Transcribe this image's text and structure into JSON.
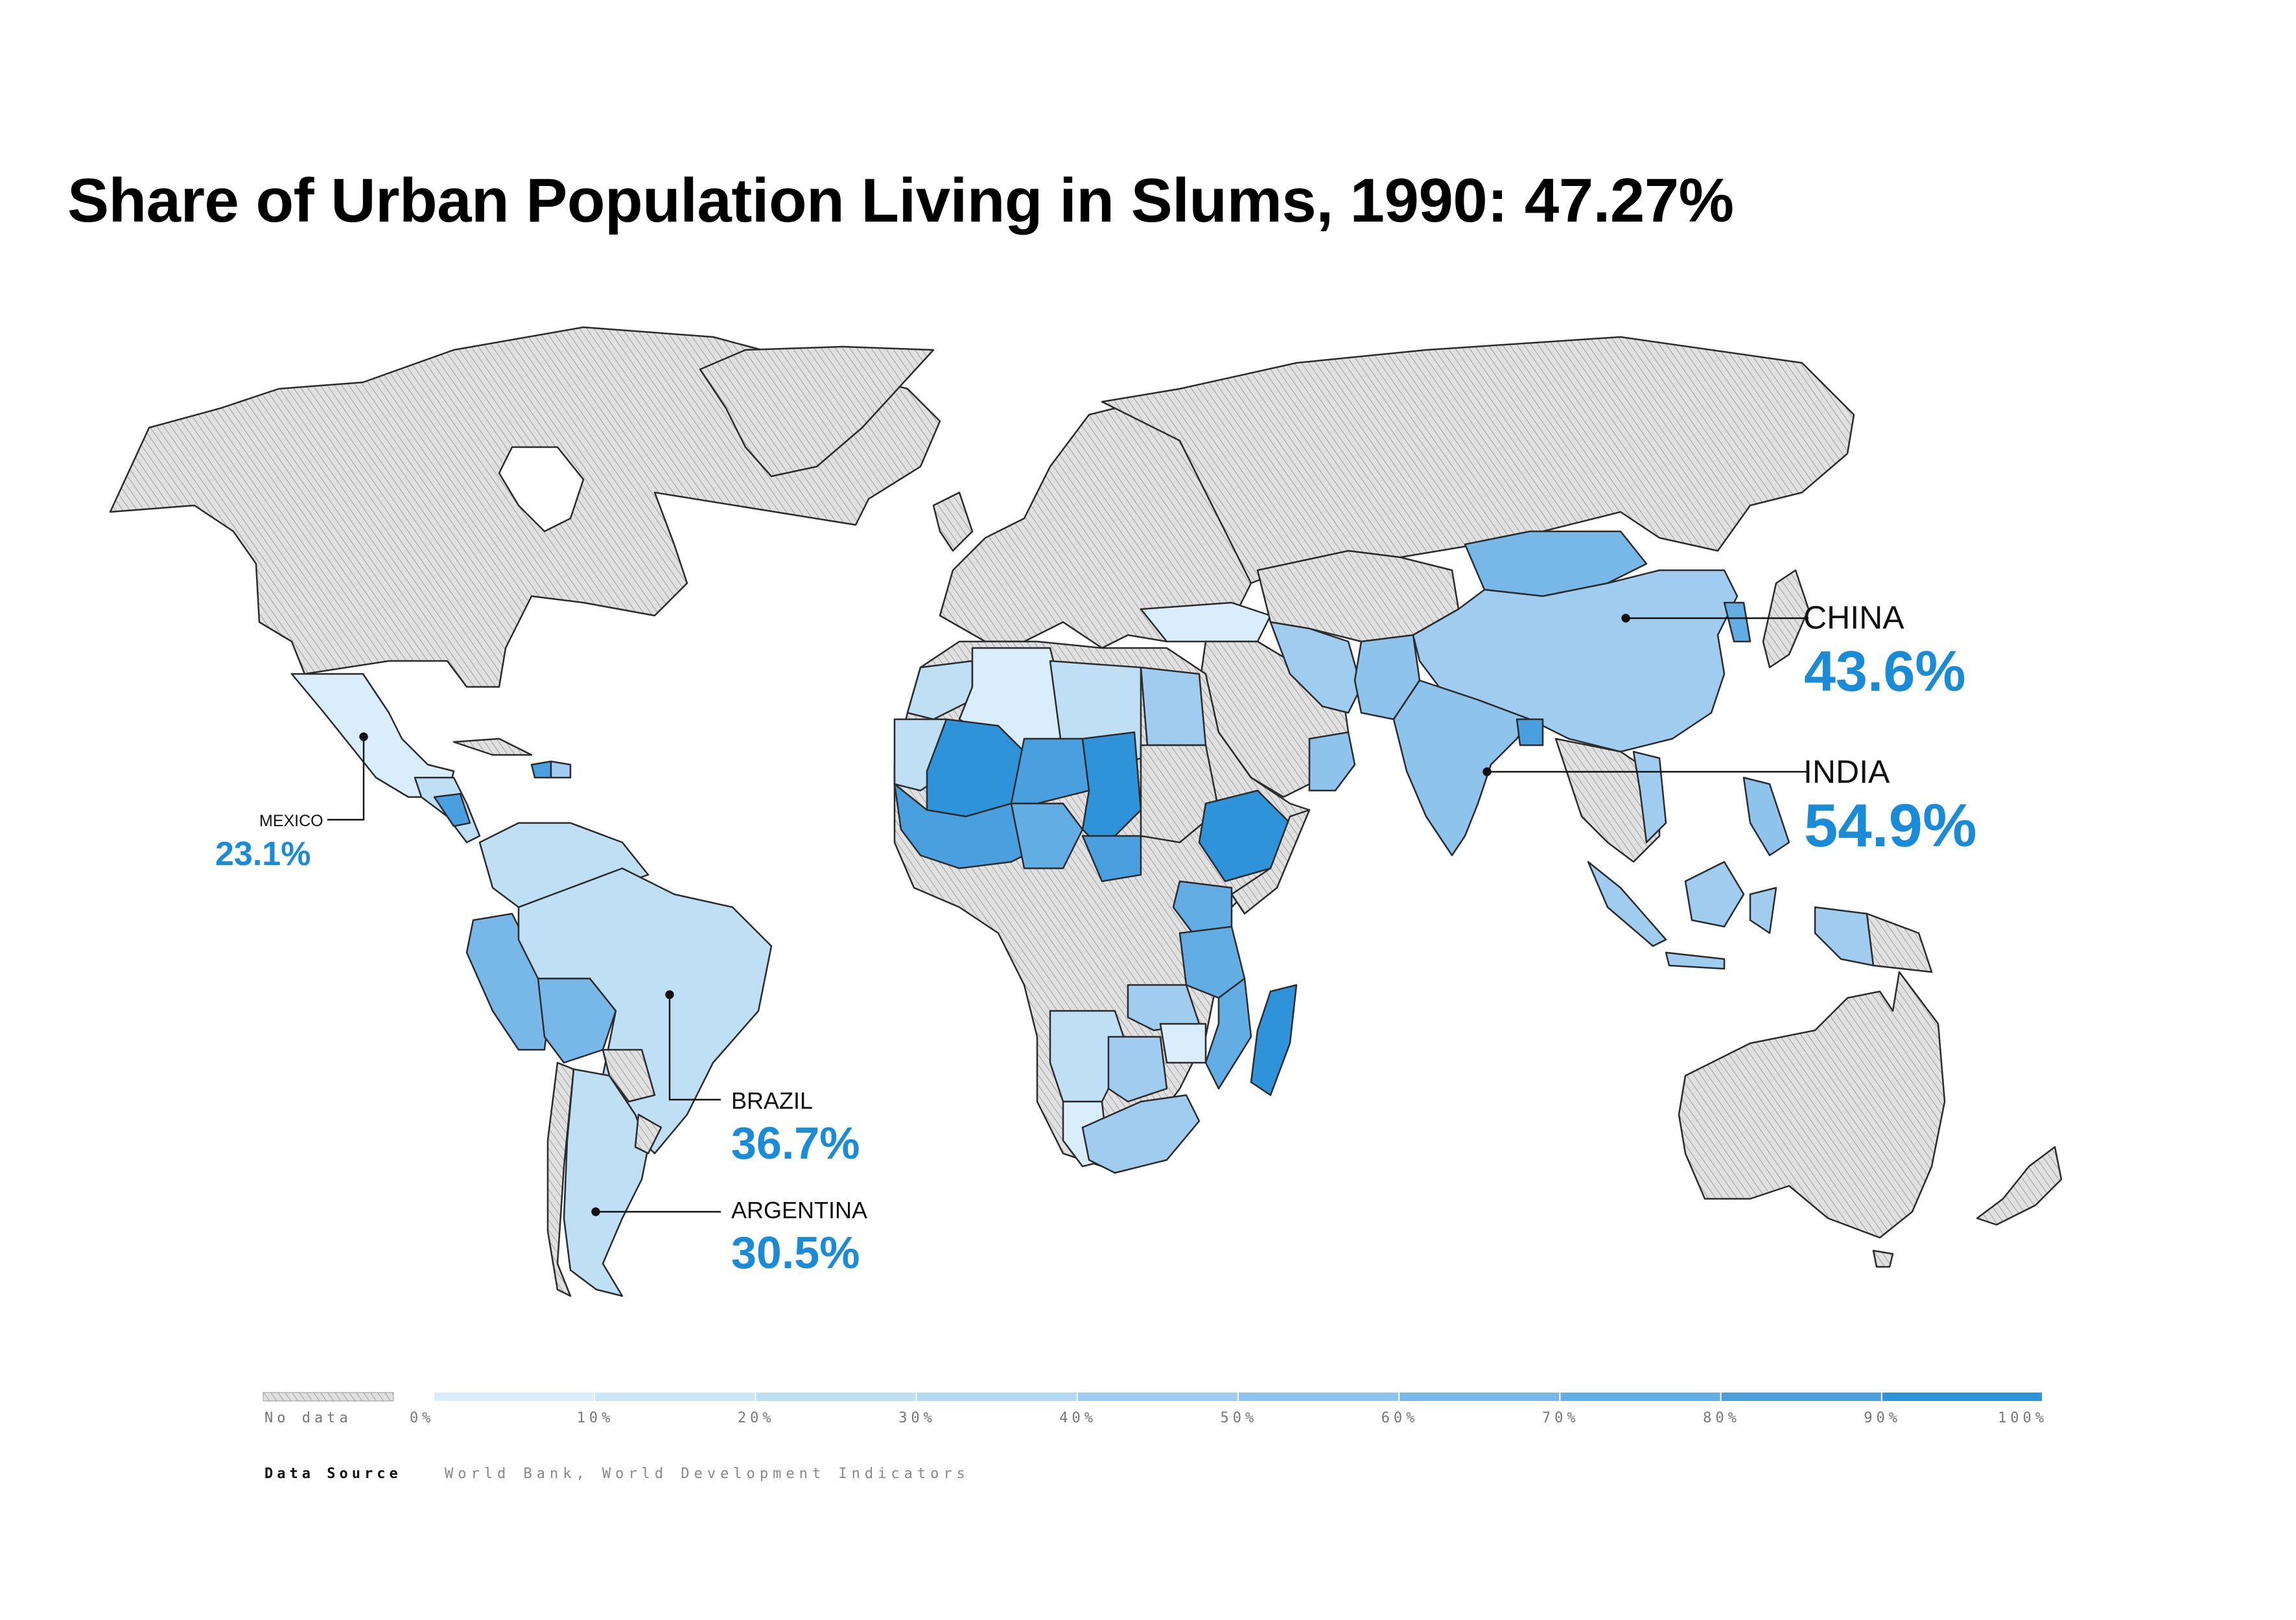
{
  "title": "Share of Urban Population Living in Slums, 1990: 47.27%",
  "colors": {
    "nodata_fill": "#dcdcdc",
    "nodata_hatch": "#a8a8a8",
    "border": "#2b2b2b",
    "accent": "#1a8bd6",
    "scale": [
      "#d9edfb",
      "#cce6f8",
      "#bfdff5",
      "#b2d8f2",
      "#a0cdef",
      "#8ec3ec",
      "#78b8e8",
      "#62ade4",
      "#4aa0df",
      "#2e93d9"
    ]
  },
  "callouts": [
    {
      "id": "china",
      "name": "CHINA",
      "value": "43.6%"
    },
    {
      "id": "india",
      "name": "INDIA",
      "value": "54.9%"
    },
    {
      "id": "mexico",
      "name": "MEXICO",
      "value": "23.1%"
    },
    {
      "id": "brazil",
      "name": "BRAZIL",
      "value": "36.7%"
    },
    {
      "id": "argentina",
      "name": "ARGENTINA",
      "value": "30.5%"
    }
  ],
  "legend": {
    "nodata_label": "No data",
    "ticks": [
      "0%",
      "10%",
      "20%",
      "30%",
      "40%",
      "50%",
      "60%",
      "70%",
      "80%",
      "90%",
      "100%"
    ]
  },
  "source": {
    "label": "Data Source",
    "text": "World Bank, World Development Indicators"
  }
}
